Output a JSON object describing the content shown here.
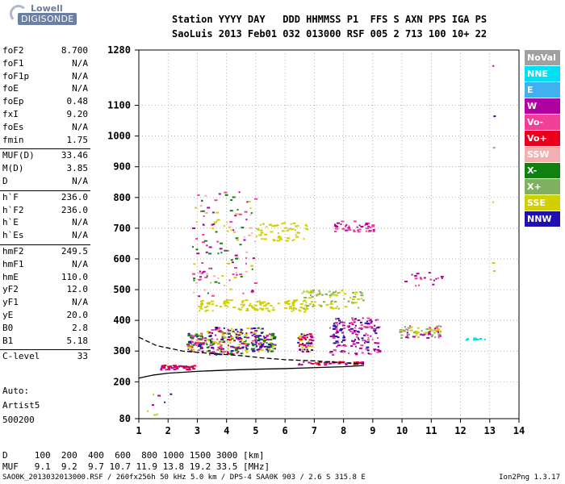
{
  "logo": {
    "line1": "Lowell",
    "line2": "DIGISONDE"
  },
  "header": {
    "line1": "Station YYYY DAY   DDD HHMMSS P1  FFS S AXN PPS IGA PS",
    "line2": "SaoLuis 2013 Feb01 032 013000 RSF 005 2 713 100 10+ 22"
  },
  "params": [
    {
      "key": "foF2",
      "value": "8.700"
    },
    {
      "key": "foF1",
      "value": "N/A"
    },
    {
      "key": "foF1p",
      "value": "N/A"
    },
    {
      "key": "foE",
      "value": "N/A"
    },
    {
      "key": "foEp",
      "value": "0.48"
    },
    {
      "key": "fxI",
      "value": "9.20"
    },
    {
      "key": "foEs",
      "value": "N/A"
    },
    {
      "key": "fmin",
      "value": "1.75"
    },
    {
      "key": "MUF(D)",
      "value": "33.46"
    },
    {
      "key": "M(D)",
      "value": "3.85"
    },
    {
      "key": "D",
      "value": "N/A"
    },
    {
      "key": "h`F",
      "value": "236.0"
    },
    {
      "key": "h`F2",
      "value": "236.0"
    },
    {
      "key": "h`E",
      "value": "N/A"
    },
    {
      "key": "h`Es",
      "value": "N/A"
    },
    {
      "key": "hmF2",
      "value": "249.5"
    },
    {
      "key": "hmF1",
      "value": "N/A"
    },
    {
      "key": "hmE",
      "value": "110.0"
    },
    {
      "key": "yF2",
      "value": "12.0"
    },
    {
      "key": "yF1",
      "value": "N/A"
    },
    {
      "key": "yE",
      "value": "20.0"
    },
    {
      "key": "B0",
      "value": "2.8"
    },
    {
      "key": "B1",
      "value": "5.18"
    },
    {
      "key": "C-level",
      "value": "33"
    }
  ],
  "autoscaling": {
    "line1": "Auto:",
    "line2": "Artist5",
    "line3": "500200"
  },
  "muf_table": {
    "line1": "D     100  200  400  600  800 1000 1500 3000 [km]",
    "line2": "MUF   9.1  9.2  9.7 10.7 11.9 13.8 19.2 33.5 [MHz]"
  },
  "footer": {
    "info": "SAO0K_2013032013000.RSF / 260fx256h 50 kHz 5.0 km / DPS-4 SAA0K 903 / 2.6 S 315.8 E",
    "version": "Ion2Png 1.3.17"
  },
  "legend": [
    {
      "label": "NoVal",
      "color": "#a0a0a0"
    },
    {
      "label": "NNE",
      "color": "#00e0f0"
    },
    {
      "label": "E",
      "color": "#40b0f0"
    },
    {
      "label": "W",
      "color": "#b000a0"
    },
    {
      "label": "Vo-",
      "color": "#f04098"
    },
    {
      "label": "Vo+",
      "color": "#e8001c"
    },
    {
      "label": "SSW",
      "color": "#f4b0b0"
    },
    {
      "label": "X-",
      "color": "#108010"
    },
    {
      "label": "X+",
      "color": "#80b060"
    },
    {
      "label": "SSE",
      "color": "#d0d000"
    },
    {
      "label": "NNW",
      "color": "#2010b0"
    }
  ],
  "chart_data": {
    "type": "scatter",
    "title": "",
    "xlabel": "",
    "ylabel": "",
    "x_ticks": [
      1,
      2,
      3,
      4,
      5,
      6,
      7,
      8,
      9,
      10,
      11,
      12,
      13,
      14
    ],
    "y_ticks": [
      80,
      200,
      300,
      400,
      500,
      600,
      700,
      800,
      900,
      1000,
      1100,
      1280
    ],
    "xlim": [
      1,
      14
    ],
    "ylim": [
      80,
      1280
    ],
    "grid": true,
    "traces": [
      {
        "kind": "profile-dashed",
        "x": [
          1.0,
          1.6,
          2.5,
          3.5,
          4.5,
          5.2,
          6.0,
          7.0,
          8.0,
          8.7
        ],
        "y": [
          345,
          318,
          300,
          292,
          285,
          278,
          272,
          268,
          262,
          258
        ]
      },
      {
        "kind": "profile-solid",
        "x": [
          1.0,
          1.5,
          2.0,
          3.0,
          4.0,
          5.0,
          6.0,
          7.0,
          8.0,
          8.7
        ],
        "y": [
          212,
          222,
          228,
          234,
          238,
          241,
          243,
          246,
          249,
          253
        ]
      }
    ],
    "point_clusters": [
      {
        "x": [
          2.6,
          3.3
        ],
        "y": [
          300,
          360
        ],
        "colors": [
          "W",
          "X-",
          "SSE",
          "Vo-",
          "NNW"
        ],
        "n": 80
      },
      {
        "x": [
          3.3,
          3.9
        ],
        "y": [
          290,
          380
        ],
        "colors": [
          "W",
          "X-",
          "SSE",
          "Vo-",
          "NNW"
        ],
        "n": 90
      },
      {
        "x": [
          4.0,
          4.7
        ],
        "y": [
          290,
          380
        ],
        "colors": [
          "W",
          "X-",
          "SSE",
          "NNW",
          "Vo+"
        ],
        "n": 90
      },
      {
        "x": [
          4.8,
          5.2
        ],
        "y": [
          300,
          380
        ],
        "colors": [
          "W",
          "X-",
          "SSE",
          "NNW"
        ],
        "n": 60
      },
      {
        "x": [
          5.2,
          5.6
        ],
        "y": [
          300,
          360
        ],
        "colors": [
          "W",
          "NNW",
          "X-",
          "SSE"
        ],
        "n": 60
      },
      {
        "x": [
          6.4,
          6.9
        ],
        "y": [
          300,
          360
        ],
        "colors": [
          "W",
          "NNW",
          "Vo+",
          "SSE"
        ],
        "n": 60
      },
      {
        "x": [
          7.5,
          9.2
        ],
        "y": [
          290,
          410
        ],
        "colors": [
          "W",
          "NNW",
          "Vo-"
        ],
        "n": 160
      },
      {
        "x": [
          3.0,
          6.8
        ],
        "y": [
          430,
          470
        ],
        "colors": [
          "SSE"
        ],
        "n": 120
      },
      {
        "x": [
          6.5,
          8.7
        ],
        "y": [
          440,
          500
        ],
        "colors": [
          "SSE",
          "X+"
        ],
        "n": 80
      },
      {
        "x": [
          5.0,
          6.8
        ],
        "y": [
          660,
          720
        ],
        "colors": [
          "SSE"
        ],
        "n": 60
      },
      {
        "x": [
          7.6,
          9.0
        ],
        "y": [
          690,
          725
        ],
        "colors": [
          "W",
          "Vo-"
        ],
        "n": 40
      },
      {
        "x": [
          2.8,
          5.0
        ],
        "y": [
          480,
          820
        ],
        "colors": [
          "W",
          "Vo-",
          "SSW",
          "SSE",
          "X-"
        ],
        "n": 140
      },
      {
        "x": [
          9.9,
          11.3
        ],
        "y": [
          345,
          385
        ],
        "colors": [
          "SSE",
          "X+",
          "W",
          "Vo-"
        ],
        "n": 70
      },
      {
        "x": [
          10.0,
          11.4
        ],
        "y": [
          510,
          560
        ],
        "colors": [
          "W",
          "Vo-"
        ],
        "n": 18
      },
      {
        "x": [
          12.1,
          12.9
        ],
        "y": [
          338,
          345
        ],
        "colors": [
          "NNE"
        ],
        "n": 10
      },
      {
        "x": [
          1.7,
          2.9
        ],
        "y": [
          242,
          256
        ],
        "colors": [
          "Vo+",
          "W"
        ],
        "n": 50
      },
      {
        "x": [
          6.4,
          8.7
        ],
        "y": [
          258,
          268
        ],
        "colors": [
          "Vo+",
          "W"
        ],
        "n": 40
      },
      {
        "x": [
          1.1,
          2.1
        ],
        "y": [
          85,
          190
        ],
        "colors": [
          "W",
          "SSE",
          "NNW"
        ],
        "n": 8
      },
      {
        "x": [
          13.05,
          13.15
        ],
        "y": [
          560,
          1270
        ],
        "colors": [
          "W",
          "SSE",
          "X+",
          "NNW"
        ],
        "n": 6
      }
    ]
  }
}
